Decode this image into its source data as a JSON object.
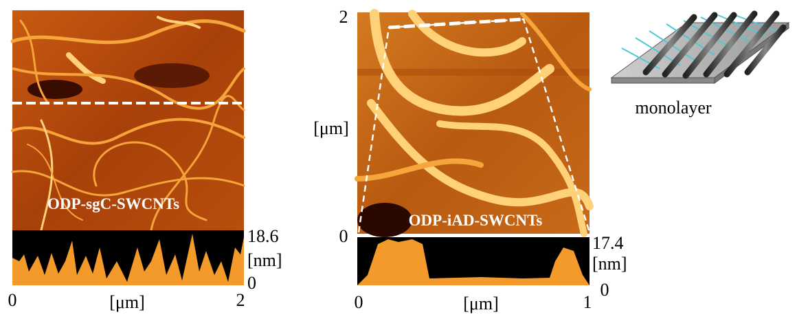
{
  "left_panel": {
    "label": "ODP-sgC-SWCNTs",
    "profile_max": "18.6",
    "profile_unit": "[nm]",
    "profile_min": "0",
    "x_start": "0",
    "x_unit": "[μm]",
    "x_end": "2"
  },
  "middle_panel": {
    "label": "ODP-iAD-SWCNTs",
    "y_top": "2",
    "y_unit": "[μm]",
    "y_bottom": "0",
    "profile_max": "17.4",
    "profile_unit": "[nm]",
    "profile_min": "0",
    "x_start": "0",
    "x_unit": "[μm]",
    "x_end": "1"
  },
  "right_panel": {
    "caption": "monolayer"
  }
}
